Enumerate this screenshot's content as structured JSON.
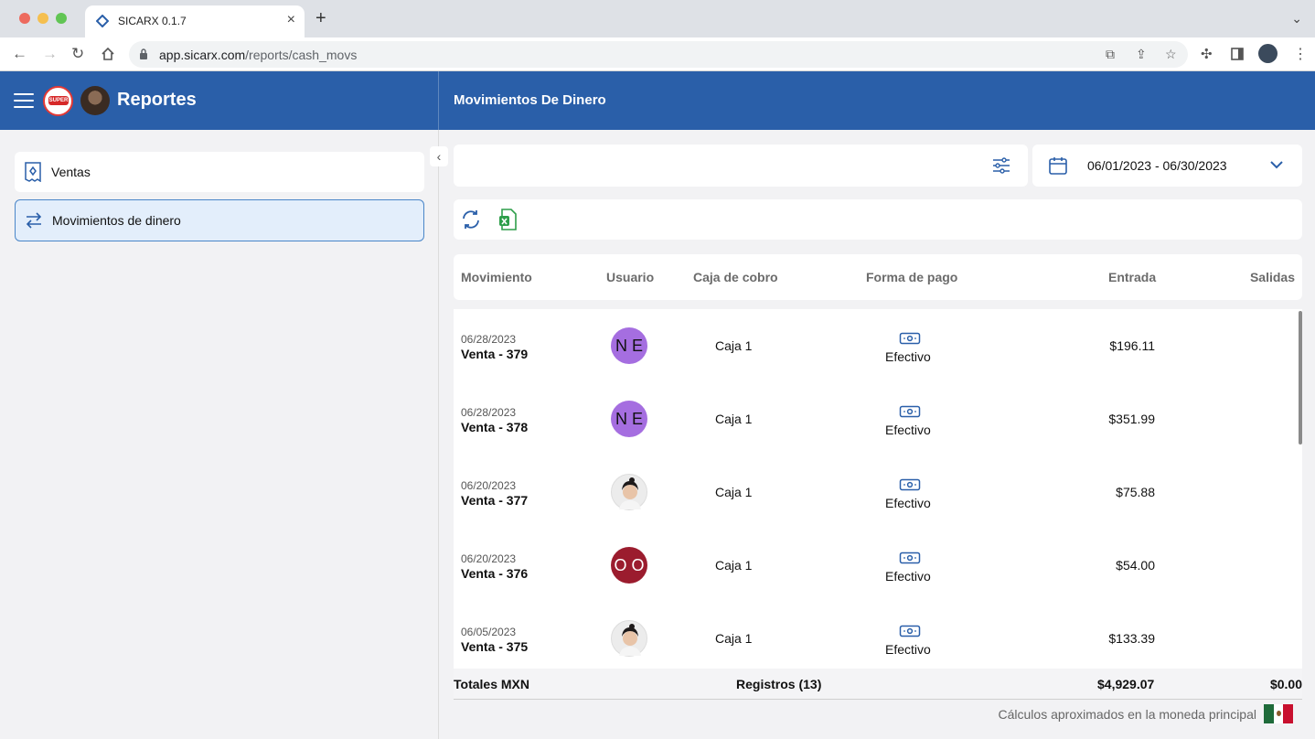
{
  "browser": {
    "tab_title": "SICARX 0.1.7",
    "url_host": "app.sicarx.com",
    "url_path": "/reports/cash_movs"
  },
  "header": {
    "app_title": "Reportes",
    "page_title": "Movimientos De Dinero",
    "logo_text": "SUPER",
    "color": "#2a5fa9"
  },
  "sidebar": {
    "items": [
      {
        "label": "Ventas",
        "icon": "receipt-icon",
        "active": false
      },
      {
        "label": "Movimientos de dinero",
        "icon": "transfer-arrows-icon",
        "active": true
      }
    ]
  },
  "filters": {
    "date_range": "06/01/2023 - 06/30/2023"
  },
  "table": {
    "headers": {
      "movimiento": "Movimiento",
      "usuario": "Usuario",
      "caja": "Caja de cobro",
      "forma": "Forma de pago",
      "entrada": "Entrada",
      "salidas": "Salidas"
    },
    "rows": [
      {
        "date": "06/28/2023",
        "name": "Venta - 379",
        "user_initials": "N E",
        "user_color": "#a56ee0",
        "caja": "Caja 1",
        "payment": "Efectivo",
        "entrada": "$196.11"
      },
      {
        "date": "06/28/2023",
        "name": "Venta - 378",
        "user_initials": "N E",
        "user_color": "#a56ee0",
        "caja": "Caja 1",
        "payment": "Efectivo",
        "entrada": "$351.99"
      },
      {
        "date": "06/20/2023",
        "name": "Venta - 377",
        "user_initials": "",
        "user_color": "photo",
        "caja": "Caja 1",
        "payment": "Efectivo",
        "entrada": "$75.88"
      },
      {
        "date": "06/20/2023",
        "name": "Venta - 376",
        "user_initials": "O O",
        "user_color": "#9b1c2e",
        "caja": "Caja 1",
        "payment": "Efectivo",
        "entrada": "$54.00"
      },
      {
        "date": "06/05/2023",
        "name": "Venta - 375",
        "user_initials": "",
        "user_color": "photo",
        "caja": "Caja 1",
        "payment": "Efectivo",
        "entrada": "$133.39"
      }
    ]
  },
  "totals": {
    "label": "Totales MXN",
    "registros": "Registros (13)",
    "entrada": "$4,929.07",
    "salidas": "$0.00"
  },
  "footer_note": "Cálculos aproximados en la moneda principal"
}
